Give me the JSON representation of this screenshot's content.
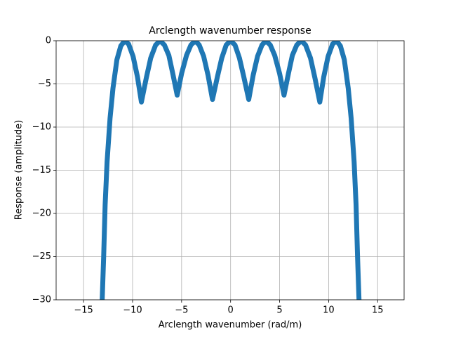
{
  "chart_data": {
    "type": "line",
    "title": "Arclength wavenumber response",
    "xlabel": "Arclength wavenumber (rad/m)",
    "ylabel": "Response (amplitude)",
    "xlim": [
      -17.8,
      17.7
    ],
    "ylim": [
      -30,
      0
    ],
    "xticks": [
      {
        "value": -15,
        "label": "−15"
      },
      {
        "value": -10,
        "label": "−10"
      },
      {
        "value": -5,
        "label": "−5"
      },
      0,
      5,
      10,
      15
    ],
    "yticks": [
      {
        "value": -30,
        "label": "−30"
      },
      {
        "value": -25,
        "label": "−25"
      },
      {
        "value": -20,
        "label": "−20"
      },
      {
        "value": -15,
        "label": "−15"
      },
      {
        "value": -10,
        "label": "−10"
      },
      {
        "value": -5,
        "label": "−5"
      },
      0
    ],
    "grid": true,
    "series": [
      {
        "color": "#1f77b4",
        "x": [
          -13.1,
          -12.95,
          -12.8,
          -12.6,
          -12.3,
          -12.0,
          -11.6,
          -11.2,
          -10.8,
          -10.4,
          -9.95,
          -9.5,
          -9.1,
          -8.6,
          -8.15,
          -7.65,
          -7.2,
          -6.75,
          -6.3,
          -5.9,
          -5.45,
          -5.0,
          -4.5,
          -4.05,
          -3.6,
          -3.2,
          -2.75,
          -2.3,
          -1.85,
          -1.35,
          -0.9,
          -0.45,
          0,
          0.45,
          0.9,
          1.35,
          1.85,
          2.3,
          2.75,
          3.2,
          3.6,
          4.05,
          4.5,
          5.0,
          5.45,
          5.9,
          6.3,
          6.75,
          7.2,
          7.65,
          8.15,
          8.6,
          9.1,
          9.5,
          9.95,
          10.4,
          10.8,
          11.2,
          11.6,
          12.0,
          12.3,
          12.6,
          12.8,
          12.95,
          13.1
        ],
        "values": [
          -30,
          -25,
          -19,
          -14,
          -9,
          -5.5,
          -2.2,
          -0.6,
          0,
          -0.4,
          -1.8,
          -4.2,
          -7.1,
          -4.3,
          -2.0,
          -0.5,
          0,
          -0.5,
          -1.7,
          -3.8,
          -6.3,
          -3.8,
          -1.7,
          -0.5,
          0,
          -0.5,
          -1.8,
          -4.0,
          -6.8,
          -4.2,
          -2.0,
          -0.5,
          0,
          -0.5,
          -2.0,
          -4.2,
          -6.8,
          -4.0,
          -1.8,
          -0.5,
          0,
          -0.5,
          -1.7,
          -3.8,
          -6.3,
          -3.8,
          -1.7,
          -0.5,
          0,
          -0.5,
          -2.0,
          -4.3,
          -7.1,
          -4.2,
          -1.8,
          -0.4,
          0,
          -0.6,
          -2.2,
          -5.5,
          -9,
          -14,
          -19,
          -25,
          -30
        ]
      }
    ]
  }
}
